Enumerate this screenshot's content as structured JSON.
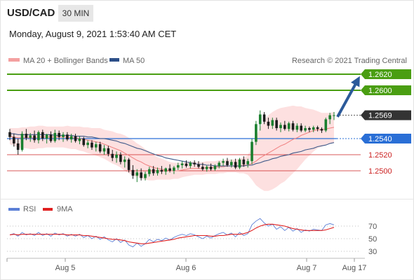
{
  "header": {
    "symbol": "USD/CAD",
    "timeframe": "30 MIN",
    "datetime": "Monday, August 9, 2021 1:53:40 AM CET"
  },
  "legend": {
    "ma20_label": "MA 20 + Bollinger Bands",
    "ma50_label": "MA 50",
    "copyright": "Research © 2021 Trading Central",
    "colors": {
      "ma20": "#f08080",
      "ma50": "#3f5a8a"
    }
  },
  "rsi_legend": {
    "rsi_label": "RSI",
    "ma_label": "9MA",
    "colors": {
      "rsi": "#5b7fd6",
      "ma": "#e02020"
    }
  },
  "chart_data": {
    "type": "candlestick",
    "instrument": "USD/CAD",
    "timeframe": "30 MIN",
    "levels": [
      {
        "value": 1.262,
        "label": "1.2620",
        "kind": "target",
        "color": "#4a9e12"
      },
      {
        "value": 1.26,
        "label": "1.2600",
        "kind": "target",
        "color": "#4a9e12"
      },
      {
        "value": 1.2569,
        "label": "1.2569",
        "kind": "last_price",
        "color": "#333333"
      },
      {
        "value": 1.254,
        "label": "1.2540",
        "kind": "pivot",
        "color": "#2a6fd6"
      },
      {
        "value": 1.252,
        "label": "1.2520",
        "kind": "support",
        "color": "#cc2222"
      },
      {
        "value": 1.25,
        "label": "1.2500",
        "kind": "support",
        "color": "#cc2222"
      }
    ],
    "x_ticks": [
      "Aug 5",
      "Aug 6",
      "Aug 7",
      "Aug 17"
    ],
    "rsi": {
      "levels": [
        70,
        50,
        30
      ],
      "tick_labels": [
        "70",
        "50",
        "30"
      ]
    },
    "candles": [
      [
        1.2548,
        1.2552,
        1.2538,
        1.2542
      ],
      [
        1.2542,
        1.2546,
        1.253,
        1.2534
      ],
      [
        1.2534,
        1.254,
        1.252,
        1.2526
      ],
      [
        1.2526,
        1.2549,
        1.2524,
        1.2546
      ],
      [
        1.2546,
        1.2552,
        1.2538,
        1.2541
      ],
      [
        1.2541,
        1.2547,
        1.2536,
        1.2544
      ],
      [
        1.2544,
        1.255,
        1.2535,
        1.2538
      ],
      [
        1.2538,
        1.255,
        1.2534,
        1.2548
      ],
      [
        1.2548,
        1.2551,
        1.2537,
        1.254
      ],
      [
        1.254,
        1.2546,
        1.2534,
        1.2545
      ],
      [
        1.2545,
        1.2549,
        1.2535,
        1.2537
      ],
      [
        1.2537,
        1.2551,
        1.2535,
        1.2547
      ],
      [
        1.2547,
        1.255,
        1.2538,
        1.2542
      ],
      [
        1.2542,
        1.2548,
        1.2536,
        1.2545
      ],
      [
        1.2545,
        1.2548,
        1.2537,
        1.2539
      ],
      [
        1.2539,
        1.2546,
        1.2535,
        1.2543
      ],
      [
        1.2543,
        1.2546,
        1.2535,
        1.2537
      ],
      [
        1.2537,
        1.2543,
        1.2533,
        1.254
      ],
      [
        1.254,
        1.2542,
        1.253,
        1.2532
      ],
      [
        1.2532,
        1.2538,
        1.2528,
        1.2535
      ],
      [
        1.2535,
        1.2538,
        1.2526,
        1.2529
      ],
      [
        1.2529,
        1.2536,
        1.2524,
        1.2533
      ],
      [
        1.2533,
        1.2536,
        1.2522,
        1.2524
      ],
      [
        1.2524,
        1.2532,
        1.252,
        1.2528
      ],
      [
        1.2528,
        1.2531,
        1.2518,
        1.2521
      ],
      [
        1.2521,
        1.2526,
        1.2512,
        1.2516
      ],
      [
        1.2516,
        1.2524,
        1.251,
        1.252
      ],
      [
        1.252,
        1.2523,
        1.2508,
        1.2511
      ],
      [
        1.2511,
        1.2518,
        1.2504,
        1.2514
      ],
      [
        1.2514,
        1.2516,
        1.2498,
        1.2501
      ],
      [
        1.2501,
        1.2507,
        1.249,
        1.2494
      ],
      [
        1.2494,
        1.2502,
        1.2486,
        1.2498
      ],
      [
        1.2498,
        1.2503,
        1.2488,
        1.2491
      ],
      [
        1.2491,
        1.2499,
        1.2488,
        1.2496
      ],
      [
        1.2496,
        1.2505,
        1.2493,
        1.2502
      ],
      [
        1.2502,
        1.2506,
        1.2494,
        1.2497
      ],
      [
        1.2497,
        1.2504,
        1.2494,
        1.2501
      ],
      [
        1.2501,
        1.2506,
        1.2496,
        1.2499
      ],
      [
        1.2499,
        1.2504,
        1.2495,
        1.2503
      ],
      [
        1.2503,
        1.2508,
        1.2498,
        1.25
      ],
      [
        1.25,
        1.2506,
        1.2496,
        1.2504
      ],
      [
        1.2504,
        1.251,
        1.2501,
        1.2507
      ],
      [
        1.2507,
        1.2512,
        1.2503,
        1.2509
      ],
      [
        1.2509,
        1.2513,
        1.2504,
        1.2506
      ],
      [
        1.2506,
        1.2512,
        1.2503,
        1.251
      ],
      [
        1.251,
        1.2513,
        1.2505,
        1.2508
      ],
      [
        1.2508,
        1.2512,
        1.2503,
        1.2505
      ],
      [
        1.2505,
        1.251,
        1.25,
        1.2502
      ],
      [
        1.2502,
        1.2507,
        1.2499,
        1.2505
      ],
      [
        1.2505,
        1.2509,
        1.25,
        1.2502
      ],
      [
        1.2502,
        1.2508,
        1.25,
        1.2506
      ],
      [
        1.2506,
        1.2512,
        1.2503,
        1.251
      ],
      [
        1.251,
        1.2515,
        1.2506,
        1.2512
      ],
      [
        1.2512,
        1.2516,
        1.2505,
        1.2507
      ],
      [
        1.2507,
        1.2514,
        1.2504,
        1.2511
      ],
      [
        1.2511,
        1.2515,
        1.2502,
        1.2504
      ],
      [
        1.2504,
        1.2516,
        1.2502,
        1.2514
      ],
      [
        1.2514,
        1.2518,
        1.2505,
        1.2508
      ],
      [
        1.2508,
        1.2515,
        1.2504,
        1.2512
      ],
      [
        1.2512,
        1.254,
        1.2508,
        1.2536
      ],
      [
        1.2536,
        1.2562,
        1.2532,
        1.2558
      ],
      [
        1.2558,
        1.2575,
        1.255,
        1.257
      ],
      [
        1.257,
        1.2573,
        1.2558,
        1.2561
      ],
      [
        1.2561,
        1.2566,
        1.2552,
        1.2556
      ],
      [
        1.2556,
        1.2566,
        1.2552,
        1.2563
      ],
      [
        1.2563,
        1.2566,
        1.255,
        1.2553
      ],
      [
        1.2553,
        1.256,
        1.2548,
        1.2557
      ],
      [
        1.2557,
        1.2562,
        1.255,
        1.2552
      ],
      [
        1.2552,
        1.2561,
        1.2549,
        1.2559
      ],
      [
        1.2559,
        1.2562,
        1.2549,
        1.2551
      ],
      [
        1.2551,
        1.2559,
        1.2548,
        1.2556
      ],
      [
        1.2556,
        1.2559,
        1.2548,
        1.255
      ],
      [
        1.255,
        1.2556,
        1.2548,
        1.2553
      ],
      [
        1.2553,
        1.2555,
        1.2548,
        1.2551
      ],
      [
        1.2551,
        1.2556,
        1.2548,
        1.2554
      ],
      [
        1.2554,
        1.2556,
        1.2549,
        1.2552
      ],
      [
        1.2552,
        1.2554,
        1.2547,
        1.255
      ],
      [
        1.255,
        1.2566,
        1.2548,
        1.2564
      ],
      [
        1.2564,
        1.2572,
        1.2558,
        1.2569
      ],
      [
        1.2569,
        1.2573,
        1.2563,
        1.2569
      ]
    ],
    "ma20": [
      1.2543,
      1.2542,
      1.2541,
      1.2541,
      1.2541,
      1.2541,
      1.2541,
      1.2542,
      1.2542,
      1.2542,
      1.2542,
      1.2542,
      1.2542,
      1.2542,
      1.2542,
      1.2541,
      1.2541,
      1.254,
      1.2539,
      1.2538,
      1.2537,
      1.2536,
      1.2535,
      1.2533,
      1.2531,
      1.2529,
      1.2527,
      1.2525,
      1.2522,
      1.2519,
      1.2516,
      1.2513,
      1.2511,
      1.2508,
      1.2506,
      1.2504,
      1.2503,
      1.2502,
      1.2501,
      1.25,
      1.25,
      1.25,
      1.2501,
      1.2502,
      1.2503,
      1.2503,
      1.2503,
      1.2503,
      1.2504,
      1.2504,
      1.2504,
      1.2505,
      1.2505,
      1.2506,
      1.2506,
      1.2506,
      1.2506,
      1.2507,
      1.2507,
      1.2509,
      1.2512,
      1.2516,
      1.2519,
      1.2522,
      1.2525,
      1.2528,
      1.2531,
      1.2533,
      1.2536,
      1.2539,
      1.2541,
      1.2544,
      1.2546,
      1.2548,
      1.255,
      1.2551,
      1.2551,
      1.2552,
      1.2553,
      1.2554
    ],
    "ma50": [
      1.2546,
      1.2546,
      1.2545,
      1.2545,
      1.2545,
      1.2545,
      1.2545,
      1.2545,
      1.2545,
      1.2545,
      1.2545,
      1.2544,
      1.2544,
      1.2544,
      1.2544,
      1.2544,
      1.2543,
      1.2543,
      1.2543,
      1.2542,
      1.2542,
      1.2541,
      1.254,
      1.254,
      1.2539,
      1.2538,
      1.2537,
      1.2535,
      1.2534,
      1.2532,
      1.253,
      1.2528,
      1.2527,
      1.2525,
      1.2523,
      1.2521,
      1.2519,
      1.2518,
      1.2516,
      1.2515,
      1.2514,
      1.2513,
      1.2512,
      1.2511,
      1.251,
      1.2509,
      1.2508,
      1.2508,
      1.2507,
      1.2507,
      1.2506,
      1.2506,
      1.2506,
      1.2506,
      1.2506,
      1.2506,
      1.2506,
      1.2506,
      1.2507,
      1.2507,
      1.2509,
      1.251,
      1.2512,
      1.2513,
      1.2515,
      1.2516,
      1.2518,
      1.2519,
      1.252,
      1.2522,
      1.2523,
      1.2524,
      1.2526,
      1.2527,
      1.2528,
      1.253,
      1.2531,
      1.2532,
      1.2534,
      1.2535
    ],
    "bollinger_width": [
      0.001,
      0.0011,
      0.0012,
      0.0013,
      0.0013,
      0.0014,
      0.0014,
      0.0014,
      0.0014,
      0.0013,
      0.0013,
      0.0013,
      0.0013,
      0.0013,
      0.0014,
      0.0014,
      0.0014,
      0.0015,
      0.0015,
      0.0016,
      0.0016,
      0.0017,
      0.0018,
      0.0018,
      0.0019,
      0.002,
      0.002,
      0.0021,
      0.0022,
      0.0022,
      0.0022,
      0.0021,
      0.002,
      0.0019,
      0.0018,
      0.0016,
      0.0014,
      0.0013,
      0.0012,
      0.0011,
      0.001,
      0.001,
      0.0009,
      0.0009,
      0.0009,
      0.0008,
      0.0008,
      0.0008,
      0.0008,
      0.0008,
      0.0008,
      0.0008,
      0.0008,
      0.0008,
      0.0008,
      0.0008,
      0.0009,
      0.001,
      0.0012,
      0.002,
      0.003,
      0.0038,
      0.0044,
      0.0047,
      0.0048,
      0.0048,
      0.0047,
      0.0046,
      0.0044,
      0.0042,
      0.0039,
      0.0036,
      0.0032,
      0.0029,
      0.0026,
      0.0023,
      0.0021,
      0.002,
      0.0019,
      0.0019
    ],
    "rsi_values": [
      56,
      58,
      54,
      60,
      56,
      58,
      55,
      60,
      55,
      58,
      54,
      59,
      56,
      58,
      54,
      57,
      54,
      57,
      52,
      55,
      50,
      54,
      49,
      53,
      48,
      45,
      50,
      44,
      48,
      40,
      37,
      43,
      38,
      42,
      49,
      45,
      49,
      47,
      51,
      48,
      52,
      55,
      57,
      55,
      58,
      56,
      53,
      50,
      54,
      51,
      55,
      58,
      60,
      56,
      59,
      53,
      60,
      55,
      58,
      72,
      78,
      82,
      75,
      70,
      73,
      65,
      69,
      63,
      68,
      62,
      66,
      60,
      64,
      62,
      65,
      64,
      63,
      72,
      74,
      72
    ],
    "rsi_ma": [
      56,
      57,
      56,
      57,
      57,
      57,
      57,
      57,
      57,
      57,
      57,
      57,
      57,
      57,
      56,
      56,
      56,
      56,
      55,
      55,
      54,
      53,
      52,
      51,
      50,
      49,
      49,
      48,
      47,
      45,
      44,
      43,
      42,
      42,
      43,
      44,
      45,
      46,
      47,
      48,
      49,
      51,
      52,
      53,
      54,
      55,
      55,
      55,
      55,
      54,
      54,
      55,
      55,
      56,
      57,
      57,
      57,
      58,
      60,
      63,
      67,
      70,
      72,
      73,
      73,
      72,
      71,
      70,
      68,
      66,
      65,
      64,
      63,
      63,
      63,
      63,
      63,
      64,
      66,
      68
    ]
  }
}
